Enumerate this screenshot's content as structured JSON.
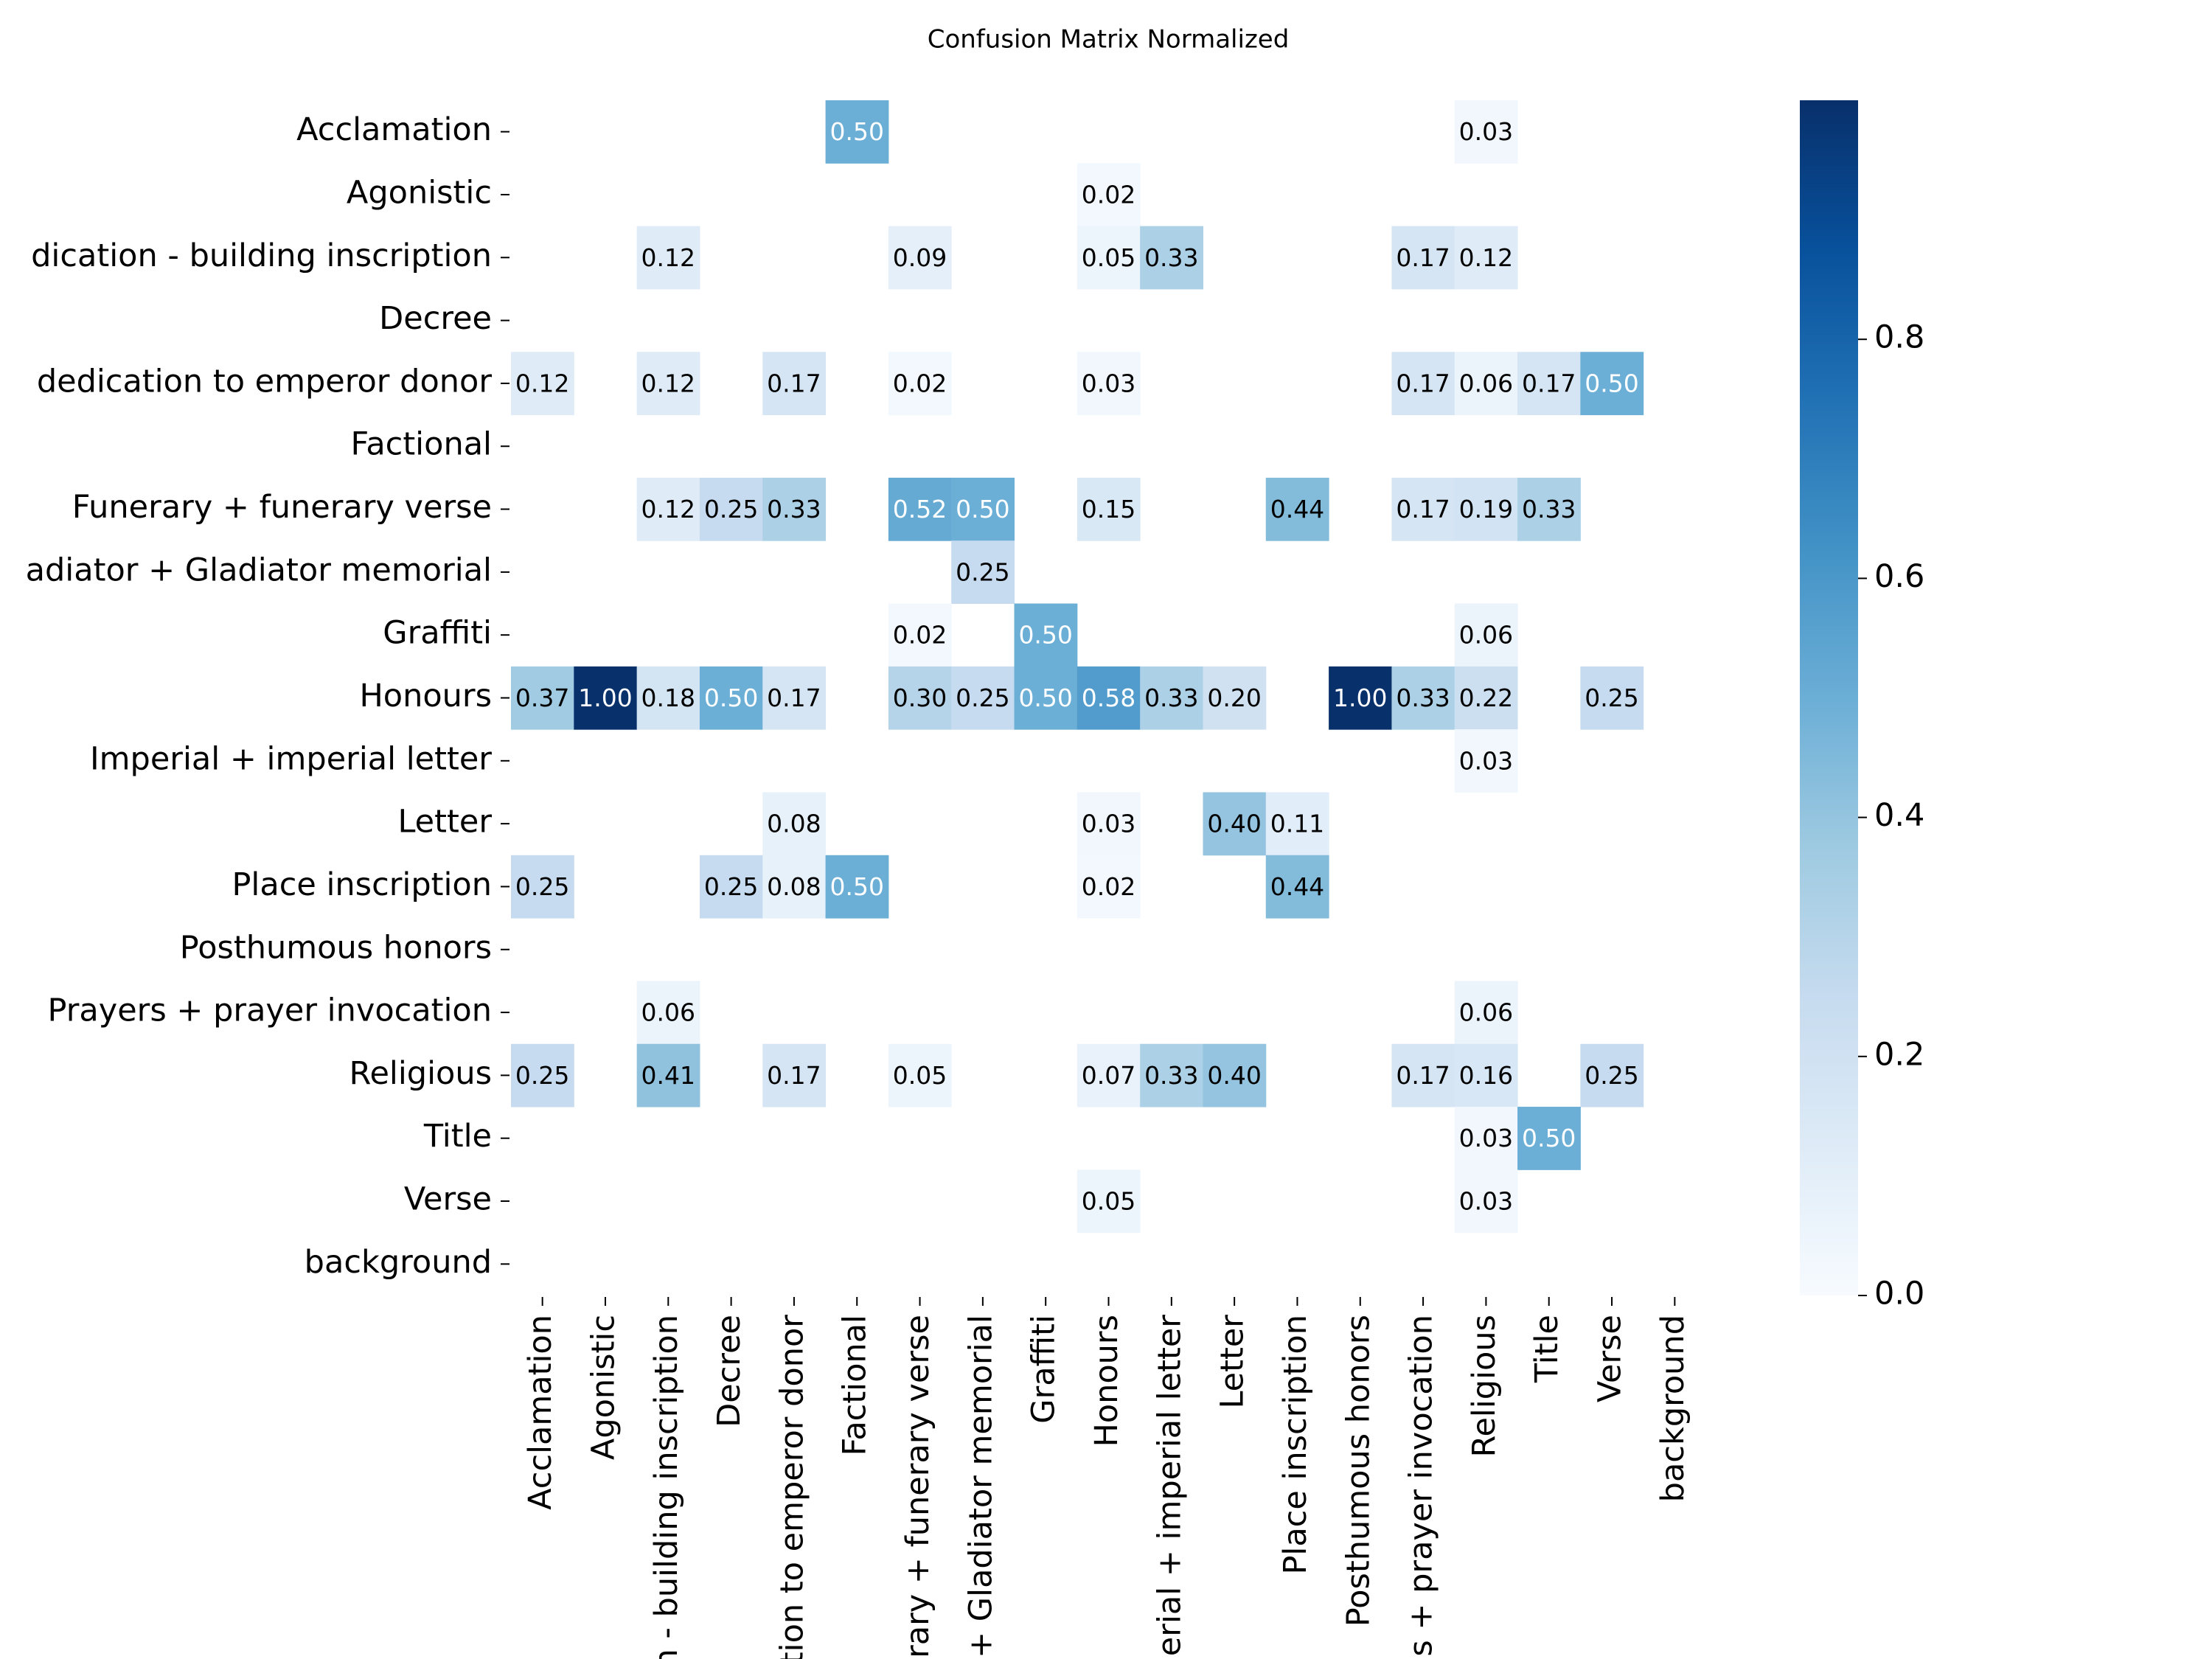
{
  "chart_data": {
    "type": "heatmap",
    "title": "Confusion Matrix Normalized",
    "y_categories": [
      "Acclamation",
      "Agonistic",
      "dication - building inscription",
      "Decree",
      "dedication to emperor donor",
      "Factional",
      "Funerary + funerary verse",
      "adiator + Gladiator memorial",
      "Graffiti",
      "Honours",
      "Imperial + imperial letter",
      "Letter",
      "Place inscription",
      "Posthumous honors",
      "Prayers + prayer invocation",
      "Religious",
      "Title",
      "Verse",
      "background"
    ],
    "x_categories": [
      "Acclamation",
      "Agonistic",
      "n - building inscription",
      "Decree",
      "tion to emperor donor",
      "Factional",
      "rary + funerary verse",
      "+ Gladiator memorial",
      "Graffiti",
      "Honours",
      "erial + imperial letter",
      "Letter",
      "Place inscription",
      "Posthumous honors",
      "s + prayer invocation",
      "Religious",
      "Title",
      "Verse",
      "background"
    ],
    "z": [
      [
        null,
        null,
        null,
        null,
        null,
        0.5,
        null,
        null,
        null,
        null,
        null,
        null,
        null,
        null,
        null,
        0.03,
        null,
        null,
        null
      ],
      [
        null,
        null,
        null,
        null,
        null,
        null,
        null,
        null,
        null,
        0.02,
        null,
        null,
        null,
        null,
        null,
        null,
        null,
        null,
        null
      ],
      [
        null,
        null,
        0.12,
        null,
        null,
        null,
        0.09,
        null,
        null,
        0.05,
        0.33,
        null,
        null,
        null,
        0.17,
        0.12,
        null,
        null,
        null
      ],
      [
        null,
        null,
        null,
        null,
        null,
        null,
        null,
        null,
        null,
        null,
        null,
        null,
        null,
        null,
        null,
        null,
        null,
        null,
        null
      ],
      [
        0.12,
        null,
        0.12,
        null,
        0.17,
        null,
        0.02,
        null,
        null,
        0.03,
        null,
        null,
        null,
        null,
        0.17,
        0.06,
        0.17,
        0.5,
        null
      ],
      [
        null,
        null,
        null,
        null,
        null,
        null,
        null,
        null,
        null,
        null,
        null,
        null,
        null,
        null,
        null,
        null,
        null,
        null,
        null
      ],
      [
        null,
        null,
        0.12,
        0.25,
        0.33,
        null,
        0.52,
        0.5,
        null,
        0.15,
        null,
        null,
        0.44,
        null,
        0.17,
        0.19,
        0.33,
        null,
        null
      ],
      [
        null,
        null,
        null,
        null,
        null,
        null,
        null,
        0.25,
        null,
        null,
        null,
        null,
        null,
        null,
        null,
        null,
        null,
        null,
        null
      ],
      [
        null,
        null,
        null,
        null,
        null,
        null,
        0.02,
        null,
        0.5,
        null,
        null,
        null,
        null,
        null,
        null,
        0.06,
        null,
        null,
        null
      ],
      [
        0.37,
        1,
        0.18,
        0.5,
        0.17,
        null,
        0.3,
        0.25,
        0.5,
        0.58,
        0.33,
        0.2,
        null,
        1,
        0.33,
        0.22,
        null,
        0.25,
        null
      ],
      [
        null,
        null,
        null,
        null,
        null,
        null,
        null,
        null,
        null,
        null,
        null,
        null,
        null,
        null,
        null,
        0.03,
        null,
        null,
        null
      ],
      [
        null,
        null,
        null,
        null,
        0.08,
        null,
        null,
        null,
        null,
        0.03,
        null,
        0.4,
        0.11,
        null,
        null,
        null,
        null,
        null,
        null
      ],
      [
        0.25,
        null,
        null,
        0.25,
        0.08,
        0.5,
        null,
        null,
        null,
        0.02,
        null,
        null,
        0.44,
        null,
        null,
        null,
        null,
        null,
        null
      ],
      [
        null,
        null,
        null,
        null,
        null,
        null,
        null,
        null,
        null,
        null,
        null,
        null,
        null,
        null,
        null,
        null,
        null,
        null,
        null
      ],
      [
        null,
        null,
        0.06,
        null,
        null,
        null,
        null,
        null,
        null,
        null,
        null,
        null,
        null,
        null,
        null,
        0.06,
        null,
        null,
        null
      ],
      [
        0.25,
        null,
        0.41,
        null,
        0.17,
        null,
        0.05,
        null,
        null,
        0.07,
        0.33,
        0.4,
        null,
        null,
        0.17,
        0.16,
        null,
        0.25,
        null
      ],
      [
        null,
        null,
        null,
        null,
        null,
        null,
        null,
        null,
        null,
        null,
        null,
        null,
        null,
        null,
        null,
        0.03,
        0.5,
        null,
        null
      ],
      [
        null,
        null,
        null,
        null,
        null,
        null,
        null,
        null,
        null,
        0.05,
        null,
        null,
        null,
        null,
        null,
        0.03,
        null,
        null,
        null
      ],
      [
        null,
        null,
        null,
        null,
        null,
        null,
        null,
        null,
        null,
        null,
        null,
        null,
        null,
        null,
        null,
        null,
        null,
        null,
        null
      ]
    ],
    "value_labels": [
      [
        null,
        null,
        null,
        null,
        null,
        "0.50",
        null,
        null,
        null,
        null,
        null,
        null,
        null,
        null,
        null,
        "0.03",
        null,
        null,
        null
      ],
      [
        null,
        null,
        null,
        null,
        null,
        null,
        null,
        null,
        null,
        "0.02",
        null,
        null,
        null,
        null,
        null,
        null,
        null,
        null,
        null
      ],
      [
        null,
        null,
        "0.12",
        null,
        null,
        null,
        "0.09",
        null,
        null,
        "0.05",
        "0.33",
        null,
        null,
        null,
        "0.17",
        "0.12",
        null,
        null,
        null
      ],
      [
        null,
        null,
        null,
        null,
        null,
        null,
        null,
        null,
        null,
        null,
        null,
        null,
        null,
        null,
        null,
        null,
        null,
        null,
        null
      ],
      [
        "0.12",
        null,
        "0.12",
        null,
        "0.17",
        null,
        "0.02",
        null,
        null,
        "0.03",
        null,
        null,
        null,
        null,
        "0.17",
        "0.06",
        "0.17",
        "0.50",
        null
      ],
      [
        null,
        null,
        null,
        null,
        null,
        null,
        null,
        null,
        null,
        null,
        null,
        null,
        null,
        null,
        null,
        null,
        null,
        null,
        null
      ],
      [
        null,
        null,
        "0.12",
        "0.25",
        "0.33",
        null,
        "0.52",
        "0.50",
        null,
        "0.15",
        null,
        null,
        "0.44",
        null,
        "0.17",
        "0.19",
        "0.33",
        null,
        null
      ],
      [
        null,
        null,
        null,
        null,
        null,
        null,
        null,
        "0.25",
        null,
        null,
        null,
        null,
        null,
        null,
        null,
        null,
        null,
        null,
        null
      ],
      [
        null,
        null,
        null,
        null,
        null,
        null,
        "0.02",
        null,
        "0.50",
        null,
        null,
        null,
        null,
        null,
        null,
        "0.06",
        null,
        null,
        null
      ],
      [
        "0.37",
        "1.00",
        "0.18",
        "0.50",
        "0.17",
        null,
        "0.30",
        "0.25",
        "0.50",
        "0.58",
        "0.33",
        "0.20",
        null,
        "1.00",
        "0.33",
        "0.22",
        null,
        "0.25",
        null
      ],
      [
        null,
        null,
        null,
        null,
        null,
        null,
        null,
        null,
        null,
        null,
        null,
        null,
        null,
        null,
        null,
        "0.03",
        null,
        null,
        null
      ],
      [
        null,
        null,
        null,
        null,
        "0.08",
        null,
        null,
        null,
        null,
        "0.03",
        null,
        "0.40",
        "0.11",
        null,
        null,
        null,
        null,
        null,
        null
      ],
      [
        "0.25",
        null,
        null,
        "0.25",
        "0.08",
        "0.50",
        null,
        null,
        null,
        "0.02",
        null,
        null,
        "0.44",
        null,
        null,
        null,
        null,
        null,
        null
      ],
      [
        null,
        null,
        null,
        null,
        null,
        null,
        null,
        null,
        null,
        null,
        null,
        null,
        null,
        null,
        null,
        null,
        null,
        null,
        null
      ],
      [
        null,
        null,
        "0.06",
        null,
        null,
        null,
        null,
        null,
        null,
        null,
        null,
        null,
        null,
        null,
        null,
        "0.06",
        null,
        null,
        null
      ],
      [
        "0.25",
        null,
        "0.41",
        null,
        "0.17",
        null,
        "0.05",
        null,
        null,
        "0.07",
        "0.33",
        "0.40",
        null,
        null,
        "0.17",
        "0.16",
        null,
        "0.25",
        null
      ],
      [
        null,
        null,
        null,
        null,
        null,
        null,
        null,
        null,
        null,
        null,
        null,
        null,
        null,
        null,
        null,
        "0.03",
        "0.50",
        null,
        null
      ],
      [
        null,
        null,
        null,
        null,
        null,
        null,
        null,
        null,
        null,
        "0.05",
        null,
        null,
        null,
        null,
        null,
        "0.03",
        null,
        null,
        null
      ],
      [
        null,
        null,
        null,
        null,
        null,
        null,
        null,
        null,
        null,
        null,
        null,
        null,
        null,
        null,
        null,
        null,
        null,
        null,
        null
      ]
    ],
    "colormap": "Blues",
    "clim": [
      0,
      1
    ],
    "colorbar_ticks": [
      {
        "value": 0,
        "label": "0.0"
      },
      0.2,
      0.4,
      0.6,
      0.8
    ]
  }
}
